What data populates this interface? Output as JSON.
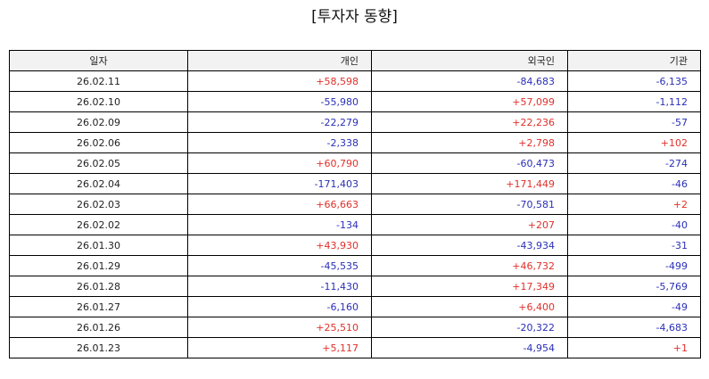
{
  "title": "[투자자 동향]",
  "colors": {
    "positive": "#e0302a",
    "negative": "#2a2fb8",
    "header_bg": "#f2f2f2"
  },
  "table": {
    "headers": [
      "일자",
      "개인",
      "외국인",
      "기관"
    ],
    "rows": [
      {
        "date": "26.02.11",
        "individual": "+58,598",
        "foreign": "-84,683",
        "institution": "-6,135"
      },
      {
        "date": "26.02.10",
        "individual": "-55,980",
        "foreign": "+57,099",
        "institution": "-1,112"
      },
      {
        "date": "26.02.09",
        "individual": "-22,279",
        "foreign": "+22,236",
        "institution": "-57"
      },
      {
        "date": "26.02.06",
        "individual": "-2,338",
        "foreign": "+2,798",
        "institution": "+102"
      },
      {
        "date": "26.02.05",
        "individual": "+60,790",
        "foreign": "-60,473",
        "institution": "-274"
      },
      {
        "date": "26.02.04",
        "individual": "-171,403",
        "foreign": "+171,449",
        "institution": "-46"
      },
      {
        "date": "26.02.03",
        "individual": "+66,663",
        "foreign": "-70,581",
        "institution": "+2"
      },
      {
        "date": "26.02.02",
        "individual": "-134",
        "foreign": "+207",
        "institution": "-40"
      },
      {
        "date": "26.01.30",
        "individual": "+43,930",
        "foreign": "-43,934",
        "institution": "-31"
      },
      {
        "date": "26.01.29",
        "individual": "-45,535",
        "foreign": "+46,732",
        "institution": "-499"
      },
      {
        "date": "26.01.28",
        "individual": "-11,430",
        "foreign": "+17,349",
        "institution": "-5,769"
      },
      {
        "date": "26.01.27",
        "individual": "-6,160",
        "foreign": "+6,400",
        "institution": "-49"
      },
      {
        "date": "26.01.26",
        "individual": "+25,510",
        "foreign": "-20,322",
        "institution": "-4,683"
      },
      {
        "date": "26.01.23",
        "individual": "+5,117",
        "foreign": "-4,954",
        "institution": "+1"
      }
    ]
  }
}
